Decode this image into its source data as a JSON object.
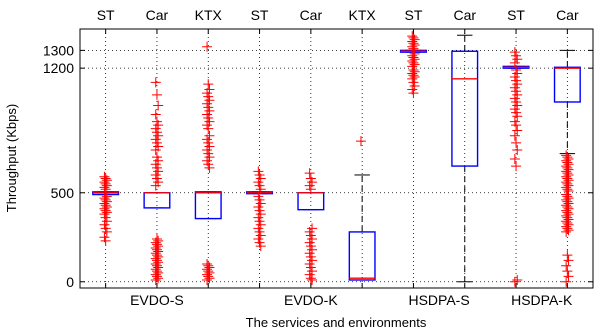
{
  "chart_data": {
    "type": "boxplot",
    "xlabel": "The services and environments",
    "ylabel": "Throughput (Kbps)",
    "ylim": [
      -35,
      1420
    ],
    "yticks": [
      0,
      500,
      1200,
      1300
    ],
    "grid": "dotted",
    "colors": {
      "box": "#0000ff",
      "median": "#ff0000",
      "outlier": "#ff0000",
      "whisker": "#000000"
    },
    "groups": [
      "EVDO-S",
      "EVDO-K",
      "HSDPA-S",
      "HSDPA-K"
    ],
    "boxes": [
      {
        "label": "ST",
        "group": "EVDO-S",
        "q1": 490,
        "median": 500,
        "q3": 505,
        "whisker_low": 490,
        "whisker_high": 505,
        "outliers": [
          590,
          580,
          570,
          560,
          550,
          540,
          530,
          520,
          480,
          470,
          460,
          450,
          440,
          430,
          420,
          410,
          400,
          390,
          380,
          360,
          340,
          320,
          300,
          280,
          250,
          230
        ]
      },
      {
        "label": "Car",
        "group": "EVDO-S",
        "q1": 415,
        "median": 500,
        "q3": 500,
        "whisker_low": 415,
        "whisker_high": 500,
        "outliers": [
          1120,
          1050,
          990,
          940,
          900,
          880,
          860,
          840,
          820,
          800,
          780,
          760,
          740,
          700,
          680,
          660,
          640,
          620,
          600,
          580,
          560,
          540,
          240,
          230,
          220,
          210,
          200,
          190,
          180,
          170,
          160,
          150,
          140,
          130,
          120,
          110,
          100,
          90,
          80,
          70,
          60,
          50,
          40,
          30,
          20,
          10
        ]
      },
      {
        "label": "KTX",
        "group": "EVDO-S",
        "q1": 355,
        "median": 500,
        "q3": 505,
        "whisker_low": 355,
        "whisker_high": 505,
        "outliers": [
          1320,
          1110,
          1080,
          1060,
          1040,
          1020,
          1000,
          980,
          960,
          940,
          920,
          900,
          880,
          860,
          820,
          800,
          780,
          760,
          740,
          720,
          700,
          680,
          660,
          640,
          100,
          90,
          80,
          70,
          60,
          50,
          40,
          30,
          20,
          10
        ]
      },
      {
        "label": "ST",
        "group": "EVDO-K",
        "q1": 495,
        "median": 500,
        "q3": 505,
        "whisker_low": 495,
        "whisker_high": 505,
        "outliers": [
          620,
          600,
          580,
          560,
          540,
          520,
          480,
          460,
          440,
          420,
          400,
          380,
          360,
          340,
          320,
          300,
          280,
          260,
          240,
          220,
          200
        ]
      },
      {
        "label": "Car",
        "group": "EVDO-K",
        "q1": 405,
        "median": 500,
        "q3": 500,
        "whisker_low": 405,
        "whisker_high": 500,
        "outliers": [
          610,
          580,
          560,
          540,
          520,
          300,
          280,
          260,
          240,
          220,
          200,
          180,
          160,
          140,
          120,
          100,
          80,
          60,
          40,
          20,
          10
        ]
      },
      {
        "label": "KTX",
        "group": "EVDO-K",
        "q1": 10,
        "median": 20,
        "q3": 280,
        "whisker_low": 10,
        "whisker_high": 600,
        "outliers": [
          790
        ]
      },
      {
        "label": "ST",
        "group": "HSDPA-S",
        "q1": 1290,
        "median": 1295,
        "q3": 1300,
        "whisker_low": 1290,
        "whisker_high": 1300,
        "outliers": [
          1380,
          1370,
          1360,
          1350,
          1340,
          1330,
          1320,
          1310,
          1280,
          1270,
          1260,
          1250,
          1240,
          1230,
          1220,
          1210,
          1190,
          1180,
          1170,
          1160,
          1150,
          1140,
          1120,
          1100,
          1080,
          1060
        ]
      },
      {
        "label": "Car",
        "group": "HSDPA-S",
        "q1": 650,
        "median": 1140,
        "q3": 1295,
        "whisker_low": 0,
        "whisker_high": 1385,
        "outliers": []
      },
      {
        "label": "ST",
        "group": "HSDPA-K",
        "q1": 1200,
        "median": 1205,
        "q3": 1210,
        "whisker_low": 1200,
        "whisker_high": 1210,
        "outliers": [
          1290,
          1270,
          1250,
          1230,
          1190,
          1170,
          1150,
          1130,
          1110,
          1090,
          1070,
          1050,
          1030,
          1010,
          990,
          970,
          950,
          930,
          900,
          880,
          850,
          820,
          780,
          740,
          690,
          650,
          10,
          0
        ]
      },
      {
        "label": "Car",
        "group": "HSDPA-K",
        "q1": 1010,
        "median": 1200,
        "q3": 1205,
        "whisker_low": 720,
        "whisker_high": 1300,
        "outliers": [
          710,
          700,
          690,
          680,
          670,
          660,
          650,
          640,
          630,
          620,
          610,
          600,
          590,
          580,
          570,
          560,
          550,
          540,
          530,
          520,
          510,
          490,
          480,
          470,
          460,
          450,
          440,
          430,
          420,
          410,
          400,
          390,
          380,
          370,
          360,
          350,
          340,
          330,
          320,
          310,
          300,
          290,
          280,
          150,
          120,
          90,
          60,
          30,
          0
        ]
      }
    ]
  }
}
